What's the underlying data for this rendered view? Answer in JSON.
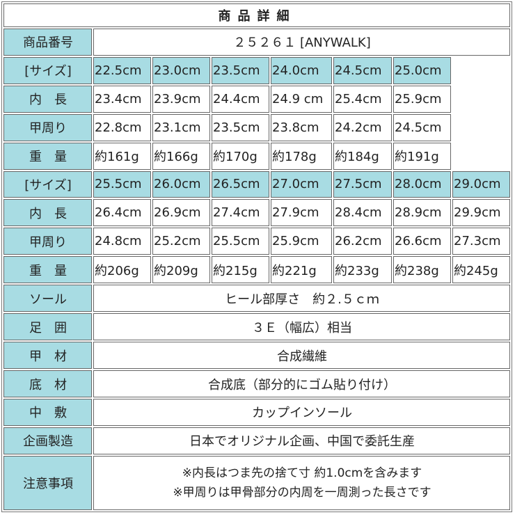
{
  "title": "商品詳細",
  "product_number": {
    "label": "商品番号",
    "value": "２５２６１ [ANYWALK]"
  },
  "size_groups": [
    {
      "size_label": "[サイズ]",
      "sizes": [
        "22.5cm",
        "23.0cm",
        "23.5cm",
        "24.0cm",
        "24.5cm",
        "25.0cm"
      ],
      "inner_length_label": "内　長",
      "inner_length": [
        "23.4cm",
        "23.9cm",
        "24.4cm",
        "24.9 cm",
        "25.4cm",
        "25.9cm"
      ],
      "instep_label": "甲周り",
      "instep": [
        "22.8cm",
        "23.1cm",
        "23.5cm",
        "23.8cm",
        "24.2cm",
        "24.5cm"
      ],
      "weight_label": "重　量",
      "weight": [
        "約161g",
        "約166g",
        "約170g",
        "約178g",
        "約184g",
        "約191g"
      ]
    },
    {
      "size_label": "[サイズ]",
      "sizes": [
        "25.5cm",
        "26.0cm",
        "26.5cm",
        "27.0cm",
        "27.5cm",
        "28.0cm",
        "29.0cm"
      ],
      "inner_length_label": "内　長",
      "inner_length": [
        "26.4cm",
        "26.9cm",
        "27.4cm",
        "27.9cm",
        "28.4cm",
        "28.9cm",
        "29.9cm"
      ],
      "instep_label": "甲周り",
      "instep": [
        "24.8cm",
        "25.2cm",
        "25.5cm",
        "25.9cm",
        "26.2cm",
        "26.6cm",
        "27.3cm"
      ],
      "weight_label": "重　量",
      "weight": [
        "約206g",
        "約209g",
        "約215g",
        "約221g",
        "約233g",
        "約238g",
        "約245g"
      ]
    }
  ],
  "specs": [
    {
      "label": "ソール",
      "value": "ヒール部厚さ　約２.５ｃｍ"
    },
    {
      "label": "足　囲",
      "value": "３Ｅ（幅広）相当"
    },
    {
      "label": "甲　材",
      "value": "合成繊維"
    },
    {
      "label": "底　材",
      "value": "合成底（部分的にゴム貼り付け）"
    },
    {
      "label": "中　敷",
      "value": "カップインソール"
    },
    {
      "label": "企画製造",
      "value": "日本でオリジナル企画、中国で委託生産"
    }
  ],
  "notes": {
    "label": "注意事項",
    "lines": [
      "※内長はつま先の捨て寸 約1.0cmを含みます",
      "※甲周りは甲骨部分の内周を一周測った長さです"
    ]
  },
  "colors": {
    "label_bg": "#a8dce3",
    "border": "#666666"
  }
}
